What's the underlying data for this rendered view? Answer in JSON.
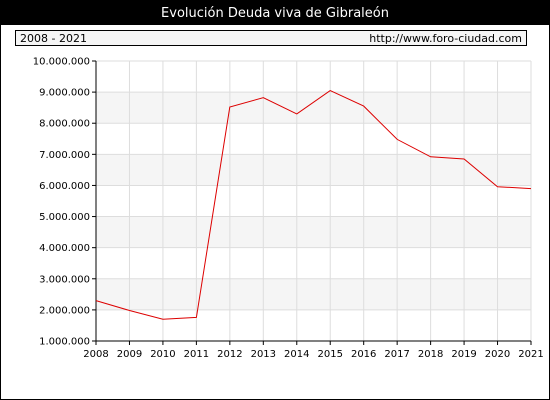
{
  "header": {
    "title": "Evolución Deuda viva de Gibraleón",
    "period": "2008 - 2021",
    "source": "http://www.foro-ciudad.com"
  },
  "colors": {
    "line": "#dd0000",
    "band_shaded": "#f5f5f5",
    "grid": "#dddddd"
  },
  "chart_data": {
    "type": "line",
    "title": "Evolución Deuda viva de Gibraleón",
    "xlabel": "",
    "ylabel": "",
    "x": [
      2008,
      2009,
      2010,
      2011,
      2012,
      2013,
      2014,
      2015,
      2016,
      2017,
      2018,
      2019,
      2020,
      2021
    ],
    "series": [
      {
        "values": [
          2300000,
          1980000,
          1700000,
          1760000,
          8520000,
          8820000,
          8300000,
          9050000,
          8550000,
          7480000,
          6920000,
          6850000,
          5960000,
          5900000
        ]
      }
    ],
    "ylim": [
      1000000,
      10000000
    ],
    "yticks": [
      "1.000.000",
      "2.000.000",
      "3.000.000",
      "4.000.000",
      "5.000.000",
      "6.000.000",
      "7.000.000",
      "8.000.000",
      "9.000.000",
      "10.000.000"
    ],
    "xticks": [
      "2008",
      "2009",
      "2010",
      "2011",
      "2012",
      "2013",
      "2014",
      "2015",
      "2016",
      "2017",
      "2018",
      "2019",
      "2020",
      "2021"
    ],
    "grid": true
  }
}
